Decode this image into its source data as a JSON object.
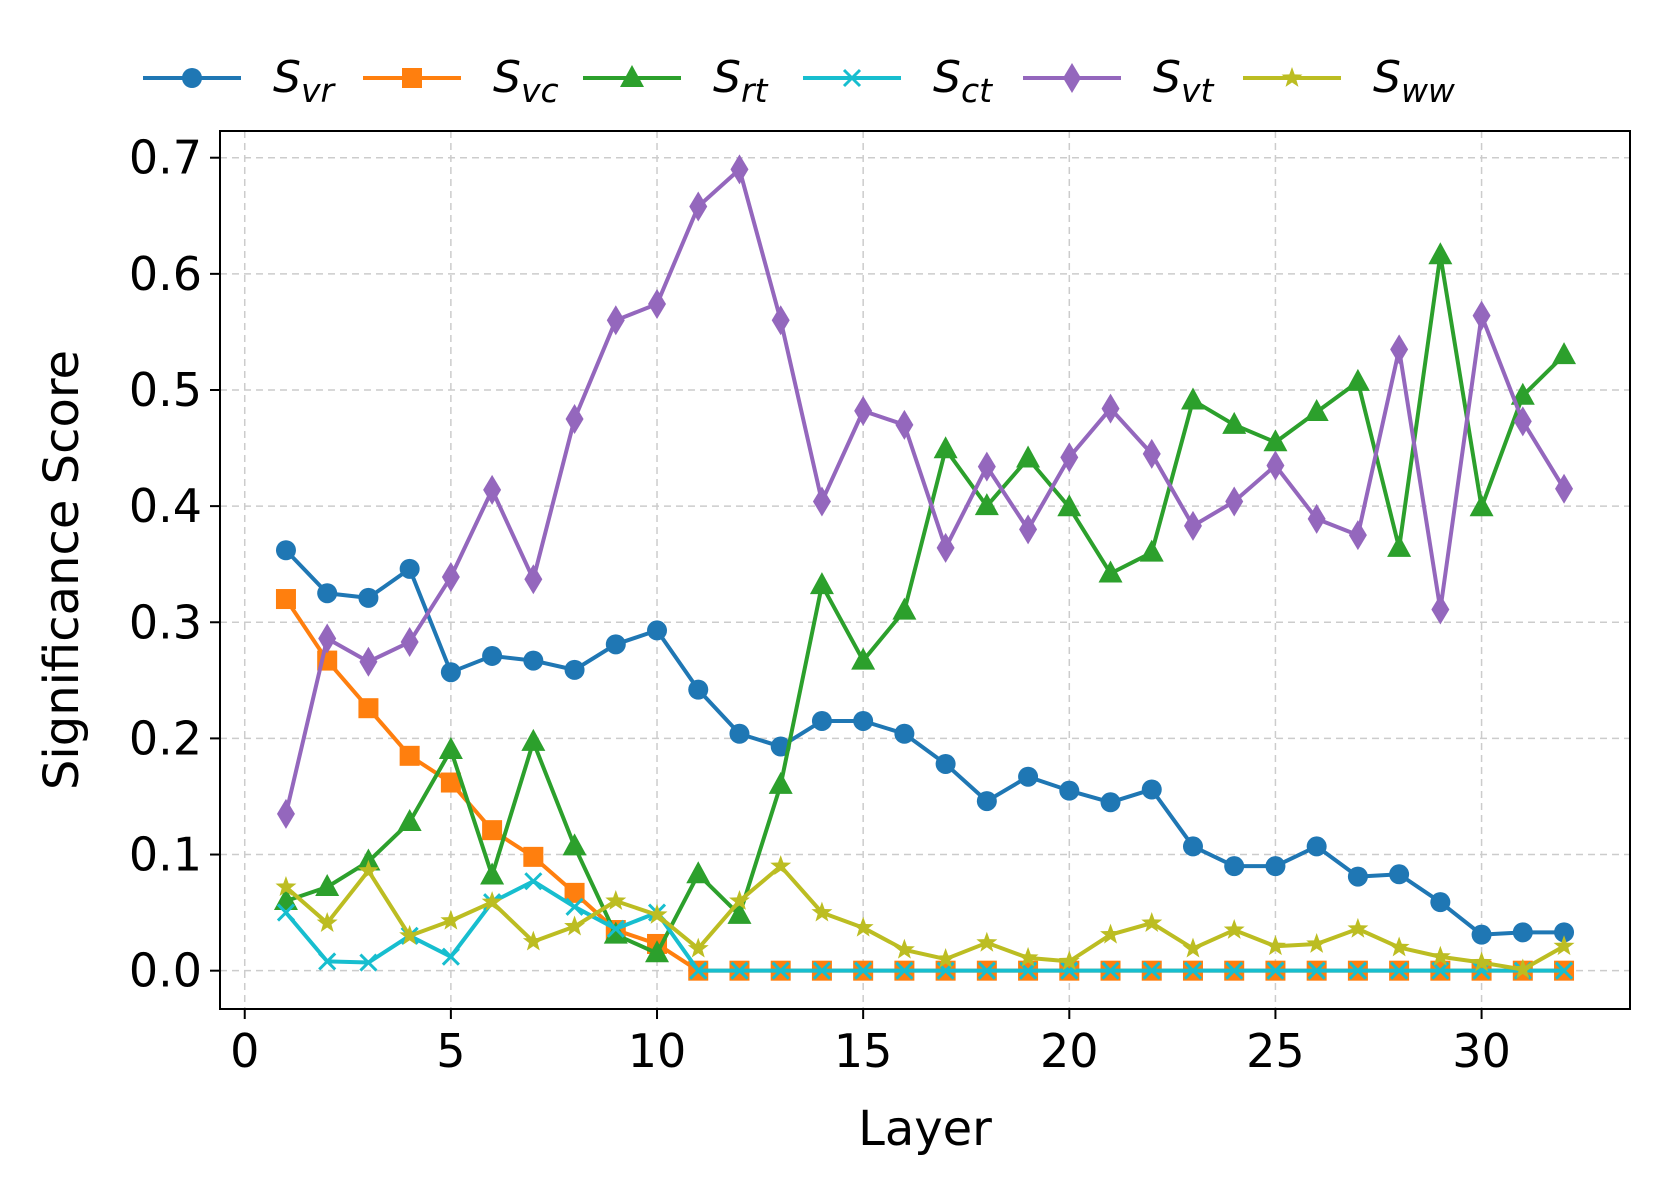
{
  "chart_data": {
    "type": "line",
    "title": "",
    "xlabel": "Layer",
    "ylabel": "Significance Score",
    "xlim": [
      -0.6,
      33.6
    ],
    "ylim": [
      -0.033,
      0.723
    ],
    "xticks": [
      0,
      5,
      10,
      15,
      20,
      25,
      30
    ],
    "yticks": [
      0.0,
      0.1,
      0.2,
      0.3,
      0.4,
      0.5,
      0.6,
      0.7
    ],
    "xtick_labels": [
      "0",
      "5",
      "10",
      "15",
      "20",
      "25",
      "30"
    ],
    "ytick_labels": [
      "0.0",
      "0.1",
      "0.2",
      "0.3",
      "0.4",
      "0.5",
      "0.6",
      "0.7"
    ],
    "grid": true,
    "legend_position": "top, outside plot, single row",
    "x": [
      1,
      2,
      3,
      4,
      5,
      6,
      7,
      8,
      9,
      10,
      11,
      12,
      13,
      14,
      15,
      16,
      17,
      18,
      19,
      20,
      21,
      22,
      23,
      24,
      25,
      26,
      27,
      28,
      29,
      30,
      31,
      32
    ],
    "series": [
      {
        "name": "S_vr",
        "label_main": "S",
        "label_sub": "vr",
        "color": "#1f77b4",
        "marker": "circle",
        "values": [
          0.362,
          0.325,
          0.321,
          0.346,
          0.257,
          0.271,
          0.267,
          0.259,
          0.281,
          0.293,
          0.242,
          0.204,
          0.193,
          0.215,
          0.215,
          0.204,
          0.178,
          0.146,
          0.167,
          0.155,
          0.145,
          0.156,
          0.107,
          0.09,
          0.09,
          0.107,
          0.081,
          0.083,
          0.059,
          0.031,
          0.033,
          0.033
        ]
      },
      {
        "name": "S_vc",
        "label_main": "S",
        "label_sub": "vc",
        "color": "#ff7f0e",
        "marker": "square",
        "values": [
          0.32,
          0.267,
          0.226,
          0.185,
          0.162,
          0.121,
          0.098,
          0.067,
          0.035,
          0.023,
          0.0,
          0.0,
          0.0,
          0.0,
          0.0,
          0.0,
          0.0,
          0.0,
          0.0,
          0.0,
          0.0,
          0.0,
          0.0,
          0.0,
          0.0,
          0.0,
          0.0,
          0.0,
          0.0,
          0.0,
          0.0,
          0.0
        ]
      },
      {
        "name": "S_rt",
        "label_main": "S",
        "label_sub": "rt",
        "color": "#2ca02c",
        "marker": "triangle",
        "values": [
          0.06,
          0.072,
          0.094,
          0.128,
          0.19,
          0.082,
          0.197,
          0.107,
          0.031,
          0.015,
          0.083,
          0.048,
          0.16,
          0.332,
          0.267,
          0.31,
          0.449,
          0.4,
          0.441,
          0.399,
          0.342,
          0.36,
          0.491,
          0.47,
          0.455,
          0.481,
          0.507,
          0.364,
          0.616,
          0.399,
          0.495,
          0.53
        ]
      },
      {
        "name": "S_ct",
        "label_main": "S",
        "label_sub": "ct",
        "color": "#17becf",
        "marker": "x",
        "values": [
          0.05,
          0.008,
          0.007,
          0.03,
          0.012,
          0.059,
          0.077,
          0.055,
          0.036,
          0.05,
          0.0,
          0.0,
          0.0,
          0.0,
          0.0,
          0.0,
          0.0,
          0.0,
          0.0,
          0.0,
          0.0,
          0.0,
          0.0,
          0.0,
          0.0,
          0.0,
          0.0,
          0.0,
          0.0,
          0.0,
          0.0,
          0.0
        ]
      },
      {
        "name": "S_vt",
        "label_main": "S",
        "label_sub": "vt",
        "color": "#9467bd",
        "marker": "diamond",
        "values": [
          0.135,
          0.286,
          0.266,
          0.283,
          0.339,
          0.414,
          0.337,
          0.475,
          0.56,
          0.574,
          0.658,
          0.69,
          0.56,
          0.404,
          0.482,
          0.47,
          0.364,
          0.434,
          0.38,
          0.442,
          0.484,
          0.445,
          0.383,
          0.404,
          0.435,
          0.389,
          0.375,
          0.535,
          0.311,
          0.564,
          0.473,
          0.415
        ]
      },
      {
        "name": "S_ww",
        "label_main": "S",
        "label_sub": "ww",
        "color": "#bcbd22",
        "marker": "star",
        "values": [
          0.072,
          0.041,
          0.086,
          0.03,
          0.043,
          0.059,
          0.025,
          0.038,
          0.06,
          0.048,
          0.019,
          0.06,
          0.09,
          0.05,
          0.037,
          0.018,
          0.01,
          0.024,
          0.011,
          0.008,
          0.031,
          0.041,
          0.019,
          0.035,
          0.021,
          0.023,
          0.036,
          0.02,
          0.012,
          0.007,
          0.001,
          0.021
        ]
      }
    ]
  }
}
